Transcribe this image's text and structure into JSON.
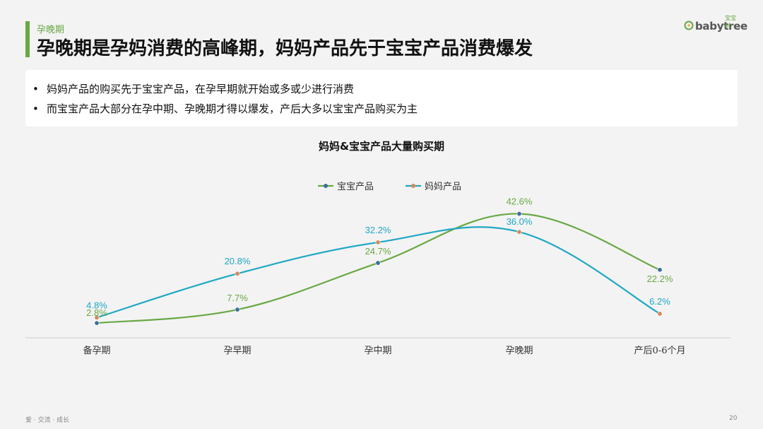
{
  "header": {
    "section": "孕晚期",
    "title": "孕晚期是孕妈消费的高峰期，妈妈产品先于宝宝产品消费爆发"
  },
  "logo": {
    "text": "babytree",
    "cn": "宝宝树"
  },
  "summary": {
    "bullet": "•",
    "items": [
      "妈妈产品的购买先于宝宝产品，在孕早期就开始或多或少进行消费",
      "而宝宝产品大部分在孕中期、孕晚期才得以爆发，产后大多以宝宝产品购买为主"
    ]
  },
  "colors": {
    "accent": "#6aa845",
    "baby": "#6aa845",
    "mom": "#1fa8c4"
  },
  "chart_data": {
    "type": "line",
    "title": "妈妈&宝宝产品大量购买期",
    "categories": [
      "备孕期",
      "孕早期",
      "孕中期",
      "孕晚期",
      "产后0-6个月"
    ],
    "series": [
      {
        "name": "宝宝产品",
        "values": [
          2.8,
          7.7,
          24.7,
          42.6,
          22.2
        ],
        "labels": [
          "2.8%",
          "7.7%",
          "24.7%",
          "42.6%",
          "22.2%"
        ]
      },
      {
        "name": "妈妈产品",
        "values": [
          4.8,
          20.8,
          32.2,
          36.0,
          6.2
        ],
        "labels": [
          "4.8%",
          "20.8%",
          "32.2%",
          "36.0%",
          "6.2%"
        ]
      }
    ],
    "legend": "top-center",
    "ylim": [
      0,
      50
    ],
    "grid": false
  },
  "footer": {
    "left": "爱 · 交流 · 成长",
    "page": "20"
  }
}
